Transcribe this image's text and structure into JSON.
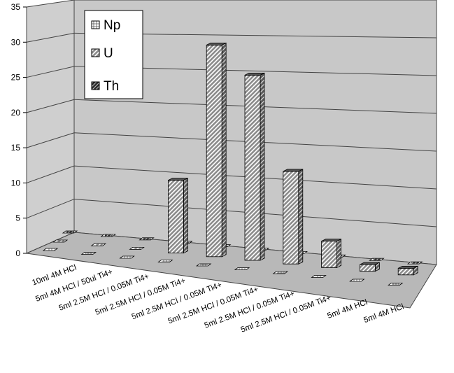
{
  "chart_data": {
    "type": "bar",
    "title": "",
    "xlabel": "",
    "ylabel": "",
    "ylim": [
      0,
      35
    ],
    "y_ticks": [
      "0",
      "5",
      "10",
      "15",
      "20",
      "25",
      "30",
      "35"
    ],
    "categories": [
      "10ml 4M HCl",
      "5ml 4M HCl / 50ul Ti4+",
      "5ml 2.5M HCl / 0.05M Ti4+",
      "5ml 2.5M HCl / 0.05M Ti4+",
      "5ml 2.5M HCl / 0.05M Ti4+",
      "5ml 2.5M HCl / 0.05M Ti4+",
      "5ml 2.5M HCl / 0.05M Ti4+",
      "5ml 2.5M HCl / 0.05M Ti4+",
      "5ml 4M HCl",
      "5ml 4M HCl"
    ],
    "series": [
      {
        "name": "Np",
        "values": [
          0,
          0,
          0,
          0,
          0,
          0,
          0,
          0,
          0,
          0
        ]
      },
      {
        "name": "U",
        "values": [
          0,
          0,
          0,
          11,
          32,
          28,
          14,
          4,
          1,
          1
        ]
      },
      {
        "name": "Th",
        "values": [
          0,
          0,
          0,
          0,
          0,
          0,
          0,
          0,
          0,
          0
        ]
      }
    ],
    "grid": true,
    "legend_position": "top-left",
    "colors": {
      "wall": "#c8c8c8",
      "floor": "#b4b4b4",
      "bar_front": "#8a8a8a",
      "hatch": "#ffffff"
    }
  }
}
